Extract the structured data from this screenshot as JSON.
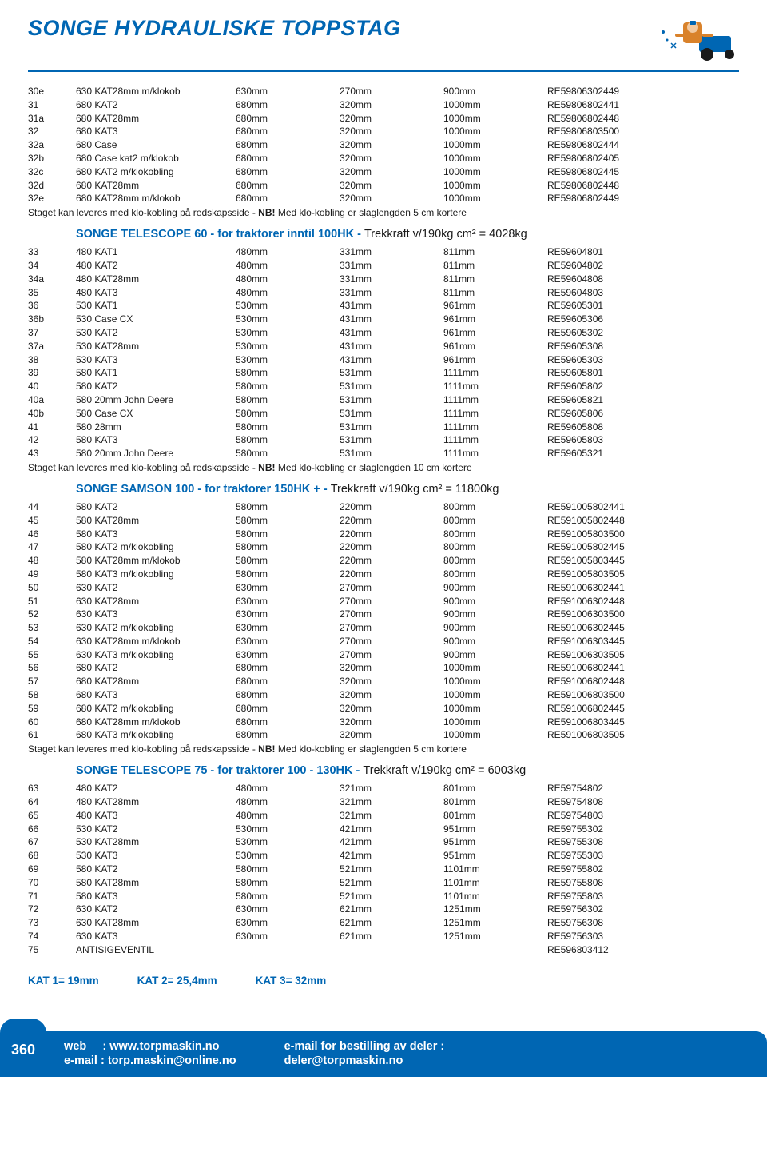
{
  "header": {
    "title": "SONGE HYDRAULISKE TOPPSTAG",
    "logo_colors": {
      "blue": "#0066b3",
      "orange": "#d9822b",
      "black": "#1a1a1a"
    }
  },
  "tables": {
    "t0": {
      "title": null,
      "title_after": null,
      "rows": [
        [
          "30e",
          "630 KAT28mm m/klokob",
          "630mm",
          "270mm",
          "900mm",
          "RE59806302449"
        ],
        [
          "31",
          "680 KAT2",
          "680mm",
          "320mm",
          "1000mm",
          "RE59806802441"
        ],
        [
          "31a",
          "680 KAT28mm",
          "680mm",
          "320mm",
          "1000mm",
          "RE59806802448"
        ],
        [
          "32",
          "680 KAT3",
          "680mm",
          "320mm",
          "1000mm",
          "RE59806803500"
        ],
        [
          "32a",
          "680 Case",
          "680mm",
          "320mm",
          "1000mm",
          "RE59806802444"
        ],
        [
          "32b",
          "680 Case kat2 m/klokob",
          "680mm",
          "320mm",
          "1000mm",
          "RE59806802405"
        ],
        [
          "32c",
          "680 KAT2 m/klokobling",
          "680mm",
          "320mm",
          "1000mm",
          "RE59806802445"
        ],
        [
          "32d",
          "680 KAT28mm",
          "680mm",
          "320mm",
          "1000mm",
          "RE59806802448"
        ],
        [
          "32e",
          "680 KAT28mm m/klokob",
          "680mm",
          "320mm",
          "1000mm",
          "RE59806802449"
        ]
      ],
      "note_pre": "Staget kan leveres med klo-kobling på redskapsside - ",
      "note_nb": "NB!",
      "note_post": " Med klo-kobling er slaglengden 5 cm kortere"
    },
    "t1": {
      "title": "SONGE TELESCOPE 60  -  for traktorer inntil 100HK  -  ",
      "title_after": "Trekkraft v/190kg cm² = 4028kg",
      "rows": [
        [
          "33",
          "480 KAT1",
          "480mm",
          "331mm",
          "811mm",
          "RE59604801"
        ],
        [
          "34",
          "480 KAT2",
          "480mm",
          "331mm",
          "811mm",
          "RE59604802"
        ],
        [
          "34a",
          "480 KAT28mm",
          "480mm",
          "331mm",
          "811mm",
          "RE59604808"
        ],
        [
          "35",
          "480 KAT3",
          "480mm",
          "331mm",
          "811mm",
          "RE59604803"
        ],
        [
          "36",
          "530 KAT1",
          "530mm",
          "431mm",
          "961mm",
          "RE59605301"
        ],
        [
          "36b",
          "530 Case CX",
          "530mm",
          "431mm",
          "961mm",
          "RE59605306"
        ],
        [
          "37",
          "530 KAT2",
          "530mm",
          "431mm",
          "961mm",
          "RE59605302"
        ],
        [
          "37a",
          "530 KAT28mm",
          "530mm",
          "431mm",
          "961mm",
          "RE59605308"
        ],
        [
          "38",
          "530 KAT3",
          "530mm",
          "431mm",
          "961mm",
          "RE59605303"
        ],
        [
          "39",
          "580 KAT1",
          "580mm",
          "531mm",
          "1111mm",
          "RE59605801"
        ],
        [
          "40",
          "580 KAT2",
          "580mm",
          "531mm",
          "1111mm",
          "RE59605802"
        ],
        [
          "40a",
          "580 20mm John Deere",
          "580mm",
          "531mm",
          "1111mm",
          "RE59605821"
        ],
        [
          "40b",
          "580 Case CX",
          "580mm",
          "531mm",
          "1111mm",
          "RE59605806"
        ],
        [
          "41",
          "580 28mm",
          "580mm",
          "531mm",
          "1111mm",
          "RE59605808"
        ],
        [
          "42",
          "580 KAT3",
          "580mm",
          "531mm",
          "1111mm",
          "RE59605803"
        ],
        [
          "43",
          "580 20mm John Deere",
          "580mm",
          "531mm",
          "1111mm",
          "RE59605321"
        ]
      ],
      "note_pre": "Staget kan leveres med klo-kobling på redskapsside - ",
      "note_nb": "NB!",
      "note_post": " Med klo-kobling er slaglengden 10 cm kortere"
    },
    "t2": {
      "title": "SONGE SAMSON 100  -  for traktorer 150HK +  -  ",
      "title_after": "Trekkraft v/190kg cm² = 11800kg",
      "rows": [
        [
          "44",
          "580 KAT2",
          "580mm",
          "220mm",
          "800mm",
          "RE591005802441"
        ],
        [
          "45",
          "580 KAT28mm",
          "580mm",
          "220mm",
          "800mm",
          "RE591005802448"
        ],
        [
          "46",
          "580 KAT3",
          "580mm",
          "220mm",
          "800mm",
          "RE591005803500"
        ],
        [
          "47",
          "580 KAT2 m/klokobling",
          "580mm",
          "220mm",
          "800mm",
          "RE591005802445"
        ],
        [
          "48",
          "580 KAT28mm m/klokob",
          "580mm",
          "220mm",
          "800mm",
          "RE591005803445"
        ],
        [
          "49",
          "580 KAT3 m/klokobling",
          "580mm",
          "220mm",
          "800mm",
          "RE591005803505"
        ],
        [
          "50",
          "630 KAT2",
          "630mm",
          "270mm",
          "900mm",
          "RE591006302441"
        ],
        [
          "51",
          "630 KAT28mm",
          "630mm",
          "270mm",
          "900mm",
          "RE591006302448"
        ],
        [
          "52",
          "630 KAT3",
          "630mm",
          "270mm",
          "900mm",
          "RE591006303500"
        ],
        [
          "53",
          "630 KAT2 m/klokobling",
          "630mm",
          "270mm",
          "900mm",
          "RE591006302445"
        ],
        [
          "54",
          "630 KAT28mm m/klokob",
          "630mm",
          "270mm",
          "900mm",
          "RE591006303445"
        ],
        [
          "55",
          "630 KAT3 m/klokobling",
          "630mm",
          "270mm",
          "900mm",
          "RE591006303505"
        ],
        [
          "56",
          "680 KAT2",
          "680mm",
          "320mm",
          "1000mm",
          "RE591006802441"
        ],
        [
          "57",
          "680 KAT28mm",
          "680mm",
          "320mm",
          "1000mm",
          "RE591006802448"
        ],
        [
          "58",
          "680 KAT3",
          "680mm",
          "320mm",
          "1000mm",
          "RE591006803500"
        ],
        [
          "59",
          "680 KAT2 m/klokobling",
          "680mm",
          "320mm",
          "1000mm",
          "RE591006802445"
        ],
        [
          "60",
          "680 KAT28mm m/klokob",
          "680mm",
          "320mm",
          "1000mm",
          "RE591006803445"
        ],
        [
          "61",
          "680 KAT3 m/klokobling",
          "680mm",
          "320mm",
          "1000mm",
          "RE591006803505"
        ]
      ],
      "note_pre": "Staget kan leveres med klo-kobling på redskapsside - ",
      "note_nb": "NB!",
      "note_post": " Med klo-kobling er slaglengden 5 cm kortere"
    },
    "t3": {
      "title": "SONGE TELESCOPE 75  -  for traktorer 100 - 130HK  -  ",
      "title_after": "Trekkraft v/190kg cm² = 6003kg",
      "rows": [
        [
          "63",
          "480 KAT2",
          "480mm",
          "321mm",
          "801mm",
          "RE59754802"
        ],
        [
          "64",
          "480 KAT28mm",
          "480mm",
          "321mm",
          "801mm",
          "RE59754808"
        ],
        [
          "65",
          "480 KAT3",
          "480mm",
          "321mm",
          "801mm",
          "RE59754803"
        ],
        [
          "66",
          "530 KAT2",
          "530mm",
          "421mm",
          "951mm",
          "RE59755302"
        ],
        [
          "67",
          "530 KAT28mm",
          "530mm",
          "421mm",
          "951mm",
          "RE59755308"
        ],
        [
          "68",
          "530 KAT3",
          "530mm",
          "421mm",
          "951mm",
          "RE59755303"
        ],
        [
          "69",
          "580 KAT2",
          "580mm",
          "521mm",
          "1101mm",
          "RE59755802"
        ],
        [
          "70",
          "580 KAT28mm",
          "580mm",
          "521mm",
          "1101mm",
          "RE59755808"
        ],
        [
          "71",
          "580 KAT3",
          "580mm",
          "521mm",
          "1101mm",
          "RE59755803"
        ],
        [
          "72",
          "630 KAT2",
          "630mm",
          "621mm",
          "1251mm",
          "RE59756302"
        ],
        [
          "73",
          "630 KAT28mm",
          "630mm",
          "621mm",
          "1251mm",
          "RE59756308"
        ],
        [
          "74",
          "630 KAT3",
          "630mm",
          "621mm",
          "1251mm",
          "RE59756303"
        ],
        [
          "75",
          "ANTISIGEVENTIL",
          "",
          "",
          "",
          "RE596803412"
        ]
      ],
      "note_pre": null
    }
  },
  "kat_line": {
    "a": "KAT 1= 19mm",
    "b": "KAT 2= 25,4mm",
    "c": "KAT 3= 32mm"
  },
  "footer": {
    "page_num": "360",
    "left": "web     : www.torpmaskin.no\ne-mail : torp.maskin@online.no",
    "right": "e-mail for bestilling av deler :\ndeler@torpmaskin.no"
  }
}
